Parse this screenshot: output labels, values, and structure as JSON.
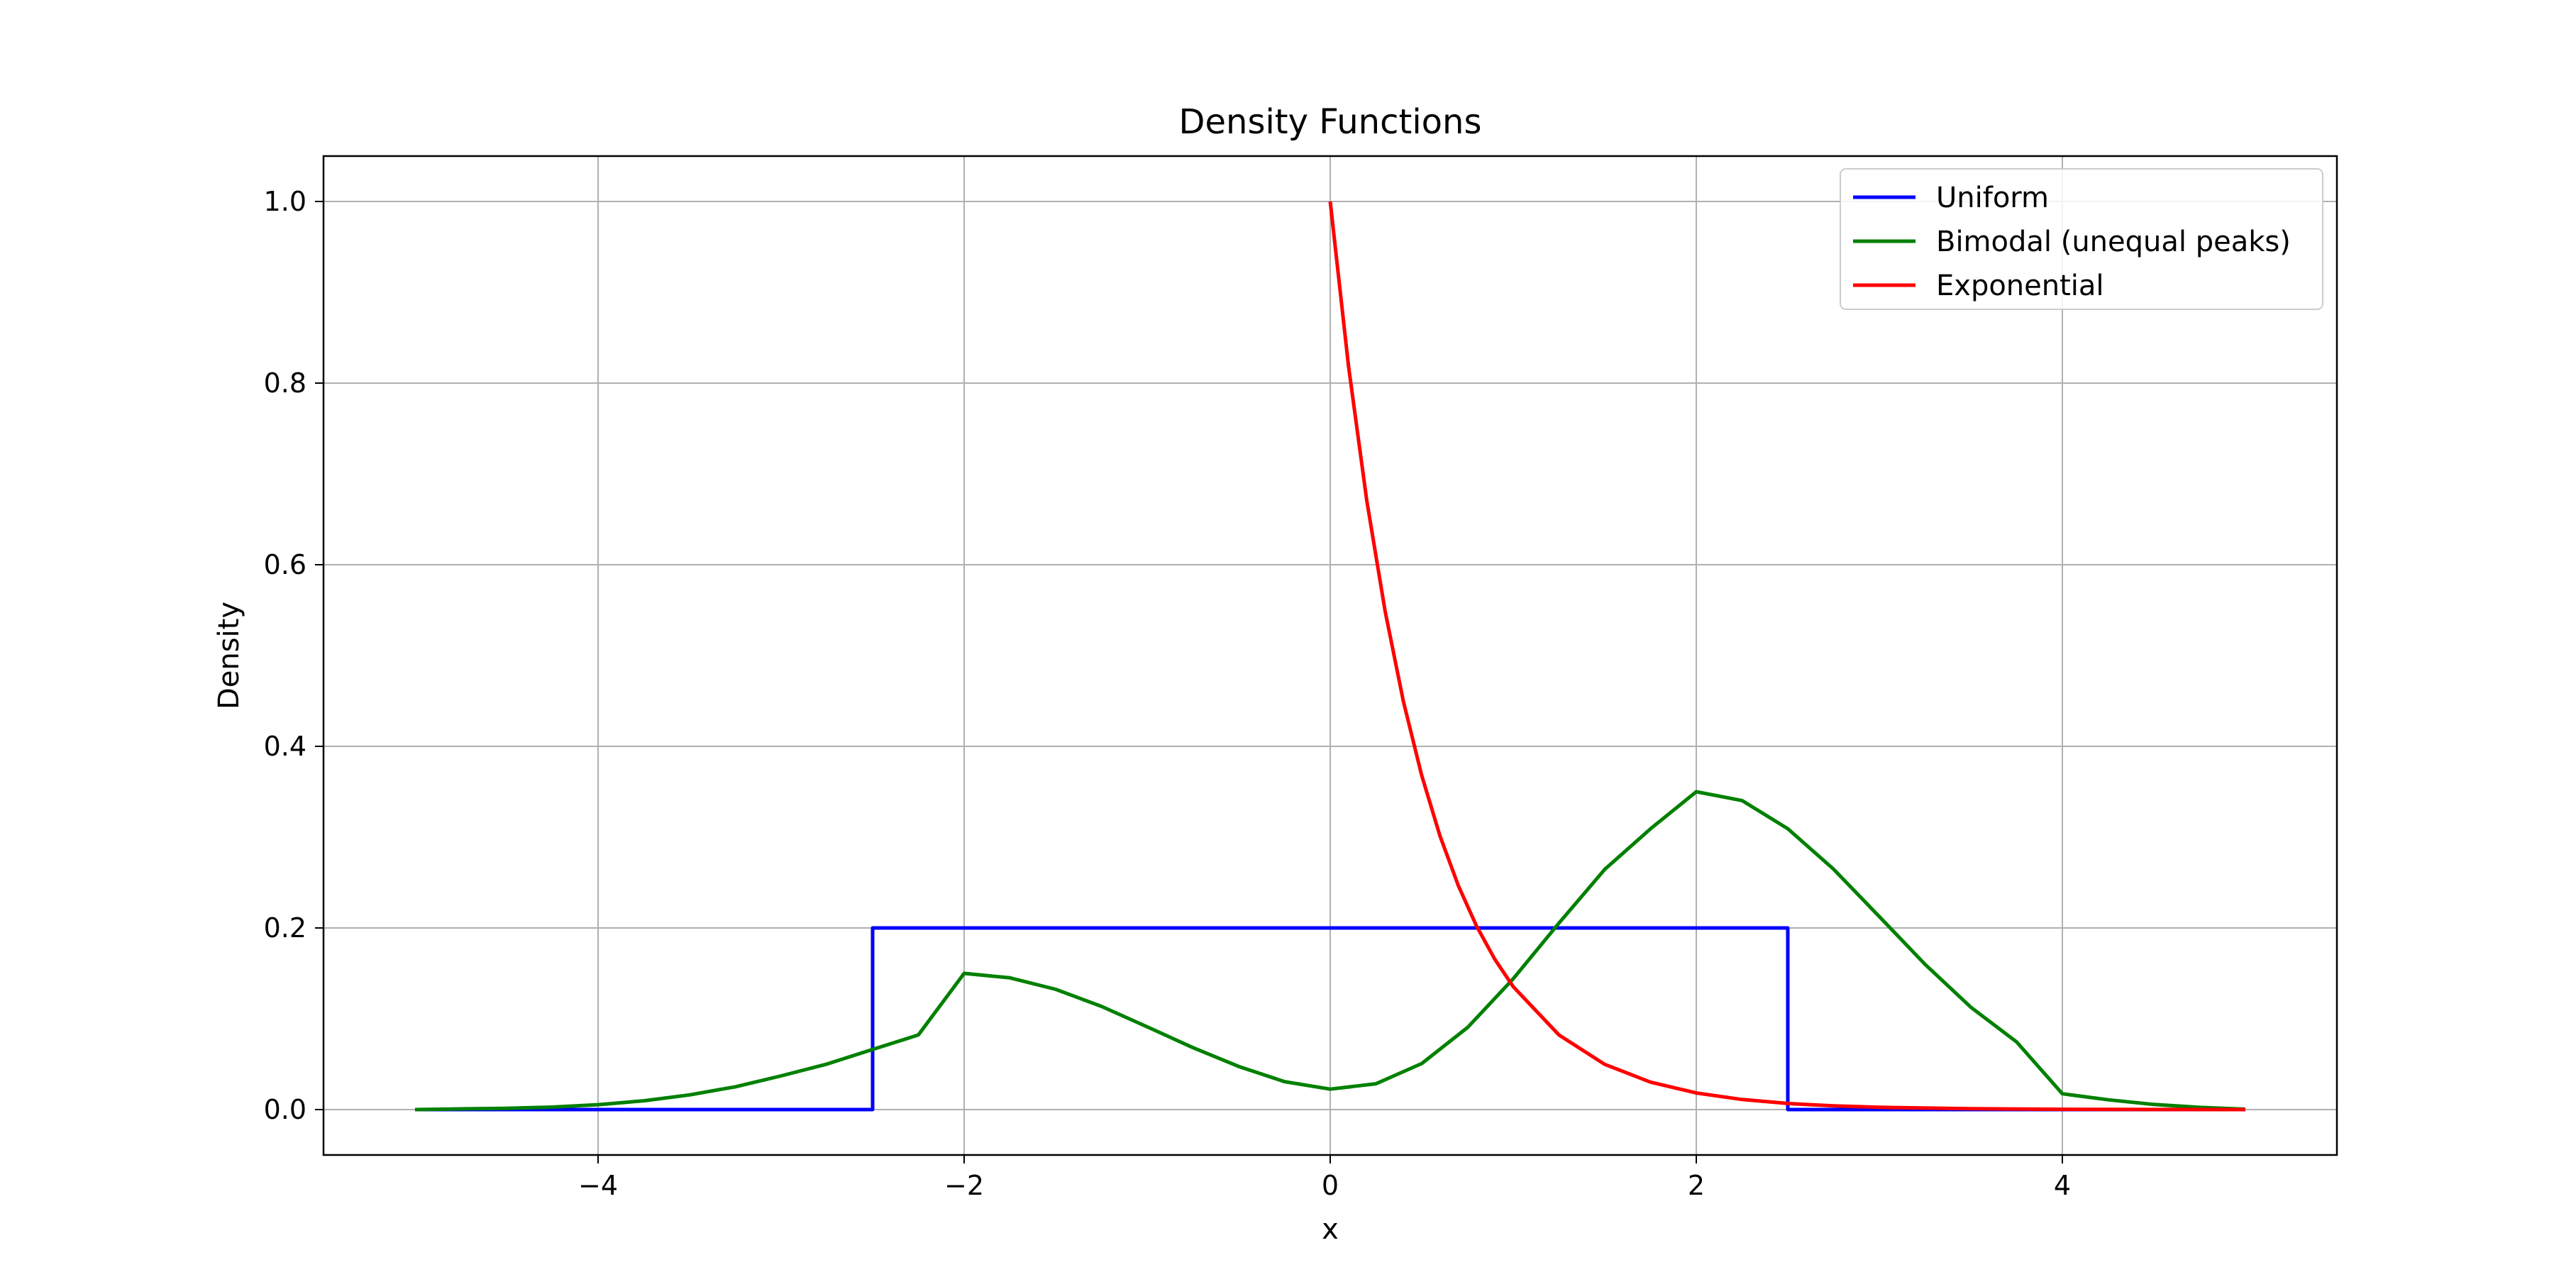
{
  "chart_data": {
    "type": "line",
    "title": "Density Functions",
    "xlabel": "x",
    "ylabel": "Density",
    "xlim": [
      -5.5,
      5.5
    ],
    "ylim": [
      -0.05,
      1.05
    ],
    "xticks": [
      -4,
      -2,
      0,
      2,
      4
    ],
    "xtick_labels": [
      "−4",
      "−2",
      "0",
      "2",
      "4"
    ],
    "yticks": [
      0.0,
      0.2,
      0.4,
      0.6,
      0.8,
      1.0
    ],
    "ytick_labels": [
      "0.0",
      "0.2",
      "0.4",
      "0.6",
      "0.8",
      "1.0"
    ],
    "grid": true,
    "legend_position": "top-right",
    "series": [
      {
        "name": "Uniform",
        "color": "#0000ff",
        "points": [
          [
            -5.0,
            0.0
          ],
          [
            -2.5,
            0.0
          ],
          [
            -2.5,
            0.2
          ],
          [
            2.5,
            0.2
          ],
          [
            2.5,
            0.0
          ],
          [
            5.0,
            0.0
          ]
        ]
      },
      {
        "name": "Bimodal (unequal peaks)",
        "color": "#008000",
        "points": [
          [
            -5.0,
            0.0
          ],
          [
            -4.75,
            0.0008
          ],
          [
            -4.5,
            0.0013
          ],
          [
            -4.25,
            0.0027
          ],
          [
            -4.0,
            0.0054
          ],
          [
            -3.75,
            0.0097
          ],
          [
            -3.5,
            0.0162
          ],
          [
            -3.25,
            0.0251
          ],
          [
            -3.0,
            0.0371
          ],
          [
            -2.75,
            0.0501
          ],
          [
            -2.5,
            0.0662
          ],
          [
            -2.25,
            0.0822
          ],
          [
            -2.0,
            0.15
          ],
          [
            -1.75,
            0.1451
          ],
          [
            -1.5,
            0.1324
          ],
          [
            -1.25,
            0.1137
          ],
          [
            -1.0,
            0.0911
          ],
          [
            -0.75,
            0.0682
          ],
          [
            -0.5,
            0.0475
          ],
          [
            -0.25,
            0.0308
          ],
          [
            0.0,
            0.0225
          ],
          [
            0.25,
            0.0284
          ],
          [
            0.5,
            0.0507
          ],
          [
            0.75,
            0.0903
          ],
          [
            1.0,
            0.1441
          ],
          [
            1.25,
            0.2054
          ],
          [
            1.5,
            0.2645
          ],
          [
            1.75,
            0.3092
          ],
          [
            2.0,
            0.35
          ],
          [
            2.25,
            0.3403
          ],
          [
            2.5,
            0.3093
          ],
          [
            2.75,
            0.2648
          ],
          [
            3.0,
            0.2125
          ],
          [
            3.25,
            0.1599
          ],
          [
            3.5,
            0.1127
          ],
          [
            3.75,
            0.0745
          ],
          [
            4.0,
            0.0174
          ],
          [
            4.25,
            0.0108
          ],
          [
            4.5,
            0.0056
          ],
          [
            4.75,
            0.0024
          ],
          [
            5.0,
            0.0004
          ]
        ]
      },
      {
        "name": "Exponential",
        "color": "#ff0000",
        "points": [
          [
            0.0,
            1.0
          ],
          [
            0.1,
            0.8187
          ],
          [
            0.2,
            0.6703
          ],
          [
            0.3,
            0.5488
          ],
          [
            0.4,
            0.4493
          ],
          [
            0.5,
            0.3679
          ],
          [
            0.6,
            0.3012
          ],
          [
            0.7,
            0.2466
          ],
          [
            0.8,
            0.2019
          ],
          [
            0.9,
            0.1653
          ],
          [
            1.0,
            0.1353
          ],
          [
            1.25,
            0.0821
          ],
          [
            1.5,
            0.0498
          ],
          [
            1.75,
            0.0302
          ],
          [
            2.0,
            0.0183
          ],
          [
            2.25,
            0.0111
          ],
          [
            2.5,
            0.0067
          ],
          [
            2.75,
            0.0041
          ],
          [
            3.0,
            0.0025
          ],
          [
            3.5,
            0.0009
          ],
          [
            4.0,
            0.0003
          ],
          [
            4.5,
            0.0001
          ],
          [
            5.0,
            0.0
          ]
        ]
      }
    ]
  }
}
